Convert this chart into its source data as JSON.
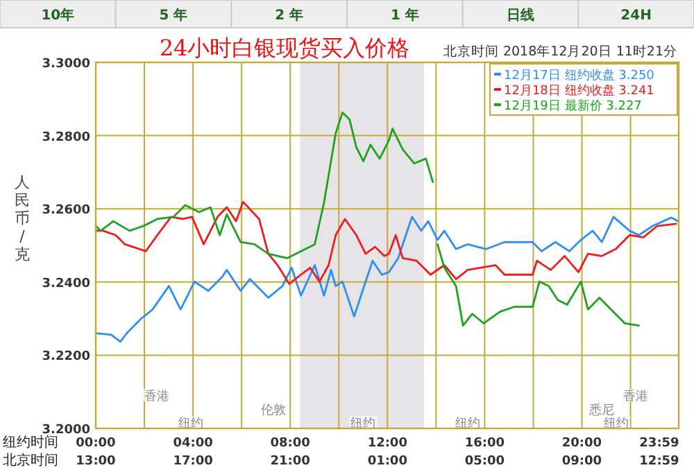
{
  "chart_data": {
    "type": "line",
    "title": "24小时白银现货买入价格",
    "subtitle": "北京时间 2018年12月20日 11时21分",
    "ylabel": "人民币/克",
    "xlabel": "纽约时间",
    "x2label": "北京时间",
    "annotations": [
      "10年",
      "5 年",
      "2 年",
      "1 年",
      "日线",
      "24H",
      {
        "text": "香港",
        "x": 2.5,
        "y": 3.2091
      },
      {
        "text": "伦敦",
        "x": 7.3,
        "y": 3.2053
      },
      {
        "text": "纽约",
        "x": 3.9,
        "y": 3.2017
      },
      {
        "text": "纽约",
        "x": 11.0,
        "y": 3.2017
      },
      {
        "text": "纽约",
        "x": 15.3,
        "y": 3.2017
      },
      {
        "text": "悉尼",
        "x": 20.8,
        "y": 3.2053
      },
      {
        "text": "纽约",
        "x": 21.4,
        "y": 3.2017
      },
      {
        "text": "香港",
        "x": 22.2,
        "y": 3.2091
      }
    ],
    "xlim": [
      0,
      23.9833
    ],
    "xticks": [
      {
        "value": 0,
        "label": "00:00"
      },
      {
        "value": 2,
        "label": null
      },
      {
        "value": 4,
        "label": "04:00"
      },
      {
        "value": 6,
        "label": null
      },
      {
        "value": 8,
        "label": "08:00"
      },
      {
        "value": 10,
        "label": null
      },
      {
        "value": 12,
        "label": "12:00"
      },
      {
        "value": 14,
        "label": null
      },
      {
        "value": 16,
        "label": "16:00"
      },
      {
        "value": 18,
        "label": null
      },
      {
        "value": 20,
        "label": "20:00"
      },
      {
        "value": 22,
        "label": null
      },
      {
        "value": 23.9833,
        "label": "23:59"
      }
    ],
    "x2lim": [
      "2018-12-19T13:00",
      "2018-12-20T12:59"
    ],
    "x2ticks": [
      {
        "value": "2018-12-19T13:00",
        "label": "13:00"
      },
      {
        "value": "2018-12-19T17:00",
        "label": "17:00"
      },
      {
        "value": "2018-12-19T21:00",
        "label": "21:00"
      },
      {
        "value": "2018-12-20T01:00",
        "label": "01:00"
      },
      {
        "value": "2018-12-20T05:00",
        "label": "05:00"
      },
      {
        "value": "2018-12-20T09:00",
        "label": "09:00"
      },
      {
        "value": "2018-12-20T12:59",
        "label": "12:59"
      }
    ],
    "ylim": [
      3.2,
      3.3
    ],
    "yticks": [
      {
        "value": 3.2,
        "label": "3.2000"
      },
      {
        "value": 3.22,
        "label": "3.2200"
      },
      {
        "value": 3.24,
        "label": "3.2400"
      },
      {
        "value": 3.26,
        "label": "3.2600"
      },
      {
        "value": 3.28,
        "label": "3.2800"
      },
      {
        "value": 3.3,
        "label": "3.3000"
      }
    ],
    "grid": true,
    "legend": "top right",
    "bands": [
      {
        "axis": "x",
        "from": 8.4,
        "to": 13.5,
        "color": "#e6e4e8"
      }
    ],
    "series": [
      {
        "name": "12月17日 纽约收盘 3.250",
        "color": "#2f8ff0",
        "x": [
          0,
          0.63,
          1.01,
          1.3,
          1.87,
          2.34,
          3.01,
          3.49,
          4.06,
          4.63,
          5.2,
          5.39,
          5.96,
          6.34,
          7.1,
          7.68,
          8.06,
          8.44,
          9.01,
          9.39,
          9.68,
          9.87,
          10.15,
          10.63,
          11.1,
          11.39,
          11.77,
          12.06,
          12.44,
          13.01,
          13.39,
          13.68,
          14.06,
          14.34,
          14.82,
          15.3,
          16.06,
          16.82,
          17.97,
          18.34,
          18.91,
          19.48,
          19.96,
          20.44,
          20.82,
          21.3,
          21.96,
          22.34,
          22.91,
          23.68,
          23.96
        ],
        "values": [
          3.226,
          3.2256,
          3.2237,
          3.2262,
          3.23,
          3.2325,
          3.2389,
          3.2325,
          3.2401,
          3.2376,
          3.2414,
          3.2433,
          3.2376,
          3.2408,
          3.2357,
          3.2389,
          3.2439,
          3.2363,
          3.2446,
          3.2363,
          3.2433,
          3.2389,
          3.2401,
          3.2306,
          3.2401,
          3.2458,
          3.242,
          3.2427,
          3.2465,
          3.2578,
          3.254,
          3.2566,
          3.2515,
          3.254,
          3.249,
          3.2503,
          3.249,
          3.2509,
          3.2509,
          3.2484,
          3.2509,
          3.2484,
          3.2515,
          3.254,
          3.2509,
          3.2578,
          3.254,
          3.2528,
          3.2553,
          3.2576,
          3.2566
        ]
      },
      {
        "name": "12月18日 纽约收盘 3.241",
        "color": "#ee1c1c",
        "x": [
          0,
          0.3,
          0.82,
          1.2,
          2.06,
          2.53,
          3.1,
          3.58,
          3.96,
          4.44,
          5.01,
          5.39,
          5.77,
          6.06,
          6.72,
          7.1,
          7.48,
          7.96,
          8.44,
          8.82,
          9.2,
          9.58,
          9.87,
          10.25,
          10.72,
          11.1,
          11.49,
          11.87,
          12.06,
          12.34,
          12.63,
          13.2,
          13.77,
          14.34,
          14.82,
          15.3,
          16.44,
          16.82,
          17.97,
          18.15,
          18.72,
          19.29,
          19.86,
          20.25,
          20.82,
          21.39,
          21.96,
          22.53,
          23.1,
          23.87
        ],
        "values": [
          3.254,
          3.254,
          3.2528,
          3.2503,
          3.2484,
          3.2528,
          3.2578,
          3.2572,
          3.2578,
          3.2503,
          3.2578,
          3.2604,
          3.2566,
          3.2619,
          3.2572,
          3.2477,
          3.2446,
          3.2395,
          3.242,
          3.2439,
          3.2401,
          3.2446,
          3.2528,
          3.2572,
          3.2528,
          3.2477,
          3.2496,
          3.2471,
          3.2477,
          3.2528,
          3.2465,
          3.2458,
          3.242,
          3.2446,
          3.2408,
          3.2433,
          3.2446,
          3.242,
          3.242,
          3.2458,
          3.2433,
          3.2471,
          3.2427,
          3.2477,
          3.2471,
          3.249,
          3.2528,
          3.2522,
          3.2553,
          3.2559
        ]
      },
      {
        "name": "12月19日 最新价 3.227",
        "color": "#1fa31f",
        "x": [
          0,
          0.2,
          0.72,
          1.39,
          1.96,
          2.53,
          3.2,
          3.68,
          4.25,
          4.72,
          5.1,
          5.39,
          5.96,
          6.53,
          7.1,
          7.87,
          8.44,
          9.01,
          9.39,
          9.87,
          10.15,
          10.44,
          10.72,
          11.01,
          11.3,
          11.68,
          12.06,
          12.21,
          12.63,
          13.1,
          13.58,
          13.87,
          13.95,
          14.06,
          14.34,
          14.82,
          15.11,
          15.49,
          15.96,
          16.63,
          17.2,
          17.97,
          18.25,
          18.63,
          19.01,
          19.39,
          19.96,
          20.25,
          20.72,
          21.2,
          21.77,
          22.34
        ],
        "values": [
          3.2553,
          3.254,
          3.2566,
          3.254,
          3.2553,
          3.2572,
          3.2578,
          3.261,
          3.2591,
          3.2604,
          3.2528,
          3.2585,
          3.2509,
          3.2503,
          3.2477,
          3.2465,
          3.2484,
          3.2503,
          3.2617,
          3.2806,
          3.2863,
          3.2844,
          3.2768,
          3.273,
          3.2775,
          3.2737,
          3.2787,
          3.2819,
          3.2762,
          3.2724,
          3.2737,
          3.2673,
          null,
          3.2503,
          3.2439,
          3.2389,
          3.2281,
          3.2313,
          3.2287,
          3.2319,
          3.2332,
          3.2332,
          3.2401,
          3.2389,
          3.2351,
          3.2338,
          3.2401,
          3.2325,
          3.2357,
          3.2325,
          3.2287,
          3.2281
        ]
      }
    ]
  }
}
